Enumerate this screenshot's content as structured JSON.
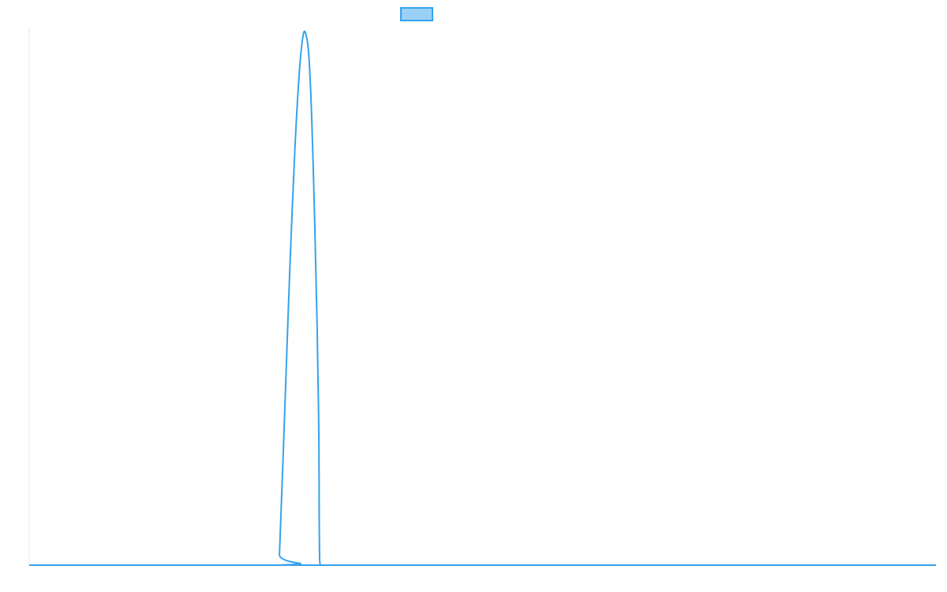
{
  "chart_data": {
    "type": "line",
    "title": "",
    "xlabel": "",
    "ylabel": "",
    "xlim": [
      0,
      100
    ],
    "ylim": [
      0,
      1
    ],
    "grid": false,
    "legend": {
      "placement": "top-center",
      "entries": [
        ""
      ]
    },
    "series": [
      {
        "color": "#36a2eb",
        "fill": "#9ad0f5",
        "x": [
          0,
          27.5,
          27.6,
          28.0,
          28.5,
          29.0,
          29.5,
          30.0,
          30.5,
          31.0,
          31.5,
          31.9,
          32.0,
          32.1,
          32.5,
          100
        ],
        "y": [
          0,
          0,
          0.02,
          0.2,
          0.44,
          0.66,
          0.84,
          0.96,
          0.99,
          0.9,
          0.63,
          0.3,
          0.05,
          0,
          0,
          0
        ]
      }
    ],
    "colors": {
      "series": "#36a2eb",
      "legend_fill": "#9ad0f5",
      "axis": "#e6e6e6"
    }
  }
}
